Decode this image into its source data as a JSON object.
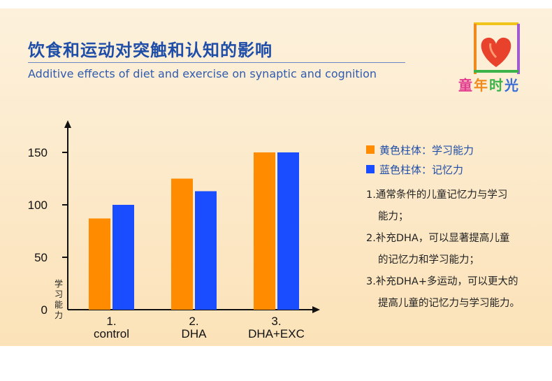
{
  "header": {
    "title_zh": "饮食和运动对突触和认知的影响",
    "title_en": "Additive effects of diet and exercise on synaptic and cognition"
  },
  "logo": {
    "chars": [
      "童",
      "年",
      "时",
      "光"
    ]
  },
  "chart_data": {
    "type": "bar",
    "categories": [
      "1.\ncontrol",
      "2.\nDHA",
      "3.\nDHA+EXC"
    ],
    "category_lines": [
      [
        "1.",
        "control"
      ],
      [
        "2.",
        "DHA"
      ],
      [
        "3.",
        "DHA+EXC"
      ]
    ],
    "series": [
      {
        "name": "黄色柱体：学习能力",
        "color": "#ff8c00",
        "values": [
          87,
          125,
          150
        ]
      },
      {
        "name": "蓝色柱体：记忆力",
        "color": "#1a4dff",
        "values": [
          100,
          113,
          150
        ]
      }
    ],
    "yticks": [
      0,
      50,
      100,
      150
    ],
    "ylim": [
      0,
      180
    ],
    "ylabel": "学习能力",
    "xlabel": "",
    "legend_position": "right",
    "grid": false
  },
  "notes": [
    {
      "line1": "1.通常条件的儿童记忆力与学习",
      "line2": "能力；"
    },
    {
      "line1": "2.补充DHA，可以显著提高儿童",
      "line2": "的记忆力和学习能力；"
    },
    {
      "line1": "3.补充DHA+多运动，可以更大的",
      "line2": "提高儿童的记忆力与学习能力。"
    }
  ]
}
